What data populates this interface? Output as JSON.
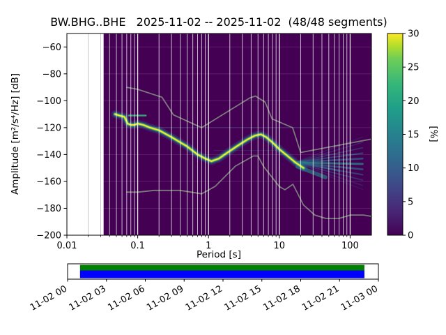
{
  "chart_data": {
    "type": "heatmap",
    "title": "BW.BHG..BHE   2025-11-02 -- 2025-11-02  (48/48 segments)",
    "xlabel": "Period [s]",
    "ylabel": "Amplitude [m²/s⁴/Hz] [dB]",
    "x_scale": "log",
    "xlim": [
      0.01,
      200
    ],
    "ylim": [
      -200,
      -50
    ],
    "data_start_period": 0.033,
    "xticks": [
      0.01,
      0.1,
      1,
      10,
      100
    ],
    "xtick_labels": [
      "0.01",
      "0.1",
      "1",
      "10",
      "100"
    ],
    "yticks": [
      -60,
      -80,
      -100,
      -120,
      -140,
      -160,
      -180,
      -200
    ],
    "ytick_labels": [
      "−60",
      "−80",
      "−100",
      "−120",
      "−140",
      "−160",
      "−180",
      "−200"
    ],
    "grid": true,
    "colors": {
      "background": "#440154",
      "noise_model": "#7f7f7f",
      "grid_dark": "#ffffff",
      "grid_light": "#bbbbbb"
    },
    "colorbar": {
      "label": "[%]",
      "min": 0,
      "max": 30,
      "ticks": [
        0,
        5,
        10,
        15,
        20,
        25,
        30
      ],
      "tick_labels": [
        "0",
        "5",
        "10",
        "15",
        "20",
        "25",
        "30"
      ],
      "colormap": "viridis",
      "stops": [
        {
          "offset": 0,
          "color": "#440154"
        },
        {
          "offset": 0.125,
          "color": "#482878"
        },
        {
          "offset": 0.25,
          "color": "#3e4a89"
        },
        {
          "offset": 0.375,
          "color": "#31688e"
        },
        {
          "offset": 0.5,
          "color": "#26828e"
        },
        {
          "offset": 0.625,
          "color": "#1f9e89"
        },
        {
          "offset": 0.75,
          "color": "#35b779"
        },
        {
          "offset": 0.875,
          "color": "#6ece58"
        },
        {
          "offset": 0.94,
          "color": "#b5de2b"
        },
        {
          "offset": 1,
          "color": "#fde725"
        }
      ]
    },
    "mode_curve": {
      "periods": [
        0.048,
        0.055,
        0.065,
        0.072,
        0.08,
        0.09,
        0.1,
        0.12,
        0.15,
        0.2,
        0.3,
        0.4,
        0.5,
        0.7,
        0.9,
        1.1,
        1.4,
        1.8,
        2.5,
        3.5,
        4.5,
        5.5,
        6.5,
        8,
        10,
        13,
        17,
        22
      ],
      "db": [
        -110,
        -111,
        -112,
        -117,
        -118,
        -118,
        -117,
        -118,
        -120,
        -122,
        -127,
        -131,
        -134,
        -140,
        -143,
        -145,
        -143,
        -139,
        -134,
        -129,
        -126,
        -125,
        -127,
        -131,
        -136,
        -141,
        -146,
        -150
      ]
    },
    "ridge_layers": [
      {
        "color": "#31688e",
        "width": 11,
        "opacity": 0.3
      },
      {
        "color": "#21918c",
        "width": 6.5,
        "opacity": 0.55
      },
      {
        "color": "#5ec962",
        "width": 3.6,
        "opacity": 0.9
      },
      {
        "color": "#fde725",
        "width": 1.8,
        "opacity": 1
      }
    ],
    "noise_models": {
      "high": {
        "periods": [
          0.07,
          0.1,
          0.22,
          0.32,
          0.8,
          3.8,
          4.6,
          6.3,
          7.9,
          15.4,
          20,
          200
        ],
        "db": [
          -90,
          -91.5,
          -97.4,
          -110.5,
          -120,
          -98,
          -96.5,
          -101,
          -113.5,
          -120,
          -138.5,
          -128.5
        ]
      },
      "low": {
        "periods": [
          0.07,
          0.1,
          0.17,
          0.4,
          0.8,
          1.24,
          2.4,
          4.3,
          5,
          6,
          10,
          12,
          15.6,
          21.9,
          31.6,
          45,
          70,
          101,
          154,
          200
        ],
        "db": [
          -168,
          -168,
          -166.7,
          -166.7,
          -169.2,
          -163.7,
          -148.6,
          -141.1,
          -141.1,
          -149,
          -163.8,
          -166.2,
          -162.1,
          -177.5,
          -185,
          -187.5,
          -187.5,
          -185,
          -185,
          -186
        ]
      }
    },
    "fan": {
      "start_period": 16,
      "start_db": -146,
      "end_period": 150,
      "lines": [
        {
          "end_db": -127,
          "color": "#3b528b",
          "width": 1.2,
          "opacity": 0.3
        },
        {
          "end_db": -131,
          "color": "#31688e",
          "width": 1.4,
          "opacity": 0.35
        },
        {
          "end_db": -135,
          "color": "#31688e",
          "width": 1.8,
          "opacity": 0.45
        },
        {
          "end_db": -139,
          "color": "#2c728e",
          "width": 2.2,
          "opacity": 0.55
        },
        {
          "end_db": -143,
          "color": "#2c728e",
          "width": 2.6,
          "opacity": 0.65
        },
        {
          "end_db": -147,
          "color": "#21918c",
          "width": 3.0,
          "opacity": 0.7
        },
        {
          "end_db": -151,
          "color": "#2c728e",
          "width": 2.6,
          "opacity": 0.65
        },
        {
          "end_db": -155,
          "color": "#31688e",
          "width": 2.2,
          "opacity": 0.55
        },
        {
          "end_db": -159,
          "color": "#31688e",
          "width": 1.8,
          "opacity": 0.45
        },
        {
          "end_db": -163,
          "color": "#3b528b",
          "width": 1.4,
          "opacity": 0.35
        },
        {
          "end_db": -166,
          "color": "#3b528b",
          "width": 1.2,
          "opacity": 0.25
        }
      ]
    },
    "streaks": [
      {
        "p1": 0.15,
        "db1": -120,
        "p2": 35,
        "db2": -120,
        "color": "#3b528b",
        "width": 1.2,
        "opacity": 0.35
      },
      {
        "p1": 1.2,
        "db1": -137,
        "p2": 9,
        "db2": -137,
        "color": "#2c728e",
        "width": 1.0,
        "opacity": 0.3
      },
      {
        "p1": 0.075,
        "db1": -111,
        "p2": 0.13,
        "db2": -111,
        "color": "#35b779",
        "width": 2.5,
        "opacity": 0.85
      },
      {
        "p1": 18,
        "db1": -149,
        "p2": 45,
        "db2": -157,
        "color": "#21918c",
        "width": 5.5,
        "opacity": 0.6
      },
      {
        "p1": 20,
        "db1": -146,
        "p2": 70,
        "db2": -152,
        "color": "#2c728e",
        "width": 3,
        "opacity": 0.5
      }
    ]
  },
  "timeline": {
    "labels": [
      "11-02 00",
      "11-02 03",
      "11-02 06",
      "11-02 09",
      "11-02 12",
      "11-02 15",
      "11-02 18",
      "11-02 21",
      "11-03 00"
    ],
    "bar_start_frac": 0.04,
    "bar_end_frac": 0.955,
    "colors": {
      "frame": "#ffffff",
      "border": "#000000",
      "top_bar": "#008000",
      "bottom_bar": "#0000ff"
    }
  }
}
